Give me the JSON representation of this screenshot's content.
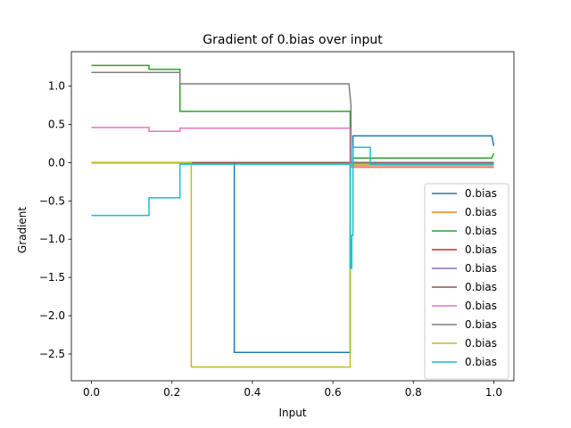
{
  "chart_data": {
    "type": "line",
    "title": "Gradient of 0.bias over input",
    "xlabel": "Input",
    "ylabel": "Gradient",
    "xlim": [
      -0.05,
      1.05
    ],
    "ylim": [
      -2.85,
      1.45
    ],
    "xticks": [
      0.0,
      0.2,
      0.4,
      0.6,
      0.8,
      1.0
    ],
    "xtick_labels": [
      "0.0",
      "0.2",
      "0.4",
      "0.6",
      "0.8",
      "1.0"
    ],
    "yticks": [
      -2.5,
      -2.0,
      -1.5,
      -1.0,
      -0.5,
      0.0,
      0.5,
      1.0
    ],
    "ytick_labels": [
      "−2.5",
      "−2.0",
      "−1.5",
      "−1.0",
      "−0.5",
      "0.0",
      "0.5",
      "1.0"
    ],
    "grid": false,
    "legend_position": "lower right",
    "series": [
      {
        "name": "0.bias",
        "color": "#1f77b4",
        "x": [
          0,
          0.355,
          0.355,
          0.643,
          0.643,
          0.65,
          0.65,
          0.995,
          1.0
        ],
        "y": [
          0,
          0,
          -2.48,
          -2.48,
          0,
          0,
          0.35,
          0.35,
          0.22
        ]
      },
      {
        "name": "0.bias",
        "color": "#ff7f0e",
        "x": [
          0,
          0.643,
          0.643,
          1.0
        ],
        "y": [
          0,
          0,
          -0.06,
          -0.06
        ]
      },
      {
        "name": "0.bias",
        "color": "#2ca02c",
        "x": [
          0,
          0.143,
          0.143,
          0.22,
          0.22,
          0.643,
          0.643,
          0.65,
          0.65,
          0.995,
          1.0
        ],
        "y": [
          1.27,
          1.27,
          1.22,
          1.22,
          0.67,
          0.67,
          -0.03,
          -0.03,
          0.06,
          0.06,
          0.12
        ]
      },
      {
        "name": "0.bias",
        "color": "#d62728",
        "x": [
          0,
          1.0
        ],
        "y": [
          0,
          0
        ]
      },
      {
        "name": "0.bias",
        "color": "#9467bd",
        "x": [
          0,
          1.0
        ],
        "y": [
          0,
          0
        ]
      },
      {
        "name": "0.bias",
        "color": "#8c564b",
        "x": [
          0,
          1.0
        ],
        "y": [
          0,
          0
        ]
      },
      {
        "name": "0.bias",
        "color": "#e377c2",
        "x": [
          0,
          0.143,
          0.143,
          0.22,
          0.22,
          0.643,
          0.643,
          1.0
        ],
        "y": [
          0.46,
          0.46,
          0.41,
          0.41,
          0.45,
          0.45,
          -0.04,
          -0.04
        ]
      },
      {
        "name": "0.bias",
        "color": "#7f7f7f",
        "x": [
          0,
          0.22,
          0.22,
          0.64,
          0.645,
          0.645,
          1.0
        ],
        "y": [
          1.18,
          1.18,
          1.03,
          1.03,
          0.75,
          -0.01,
          -0.01
        ]
      },
      {
        "name": "0.bias",
        "color": "#bcbd22",
        "x": [
          0,
          0.248,
          0.248,
          0.643,
          0.643,
          1.0
        ],
        "y": [
          0,
          0,
          -2.67,
          -2.67,
          -0.02,
          -0.02
        ]
      },
      {
        "name": "0.bias",
        "color": "#17becf",
        "x": [
          0,
          0.143,
          0.143,
          0.22,
          0.22,
          0.643,
          0.643,
          0.647,
          0.647,
          0.65,
          0.65,
          0.693,
          0.693,
          1.0
        ],
        "y": [
          -0.69,
          -0.69,
          -0.46,
          -0.46,
          -0.02,
          -0.02,
          -1.38,
          -1.38,
          -0.95,
          -0.95,
          0.2,
          0.2,
          -0.02,
          -0.02
        ]
      }
    ]
  }
}
